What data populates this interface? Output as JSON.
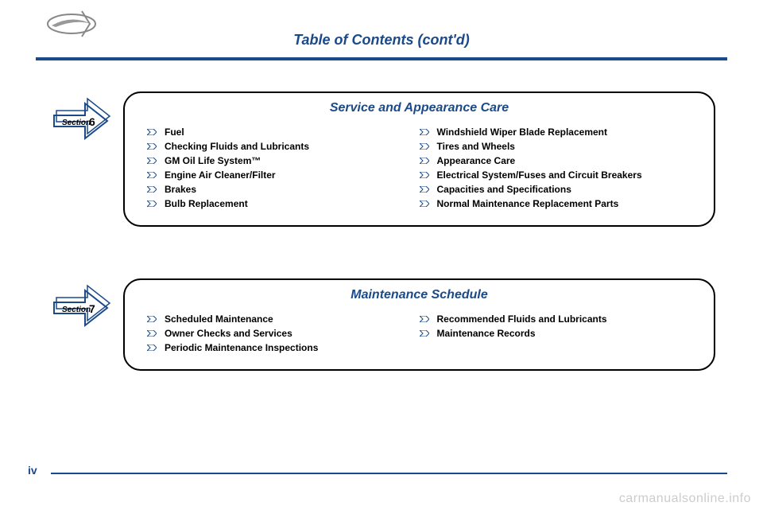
{
  "page_title": "Table of Contents (cont'd)",
  "page_number": "iv",
  "watermark": "carmanualsonline.info",
  "colors": {
    "primary": "#1a4a8a",
    "text": "#000000",
    "background": "#ffffff",
    "watermark": "#cccccc"
  },
  "sections": [
    {
      "section_label": "Section",
      "section_number": "6",
      "title": "Service and Appearance Care",
      "left_items": [
        "Fuel",
        "Checking Fluids and Lubricants",
        "GM Oil Life System™",
        "Engine Air Cleaner/Filter",
        "Brakes",
        "Bulb Replacement"
      ],
      "right_items": [
        "Windshield Wiper Blade Replacement",
        "Tires and Wheels",
        "Appearance Care",
        "Electrical System/Fuses and Circuit Breakers",
        "Capacities and Specifications",
        "Normal Maintenance Replacement Parts"
      ]
    },
    {
      "section_label": "Section",
      "section_number": "7",
      "title": "Maintenance Schedule",
      "left_items": [
        "Scheduled Maintenance",
        "Owner Checks and Services",
        "Periodic Maintenance Inspections"
      ],
      "right_items": [
        "Recommended Fluids and Lubricants",
        "Maintenance Records"
      ]
    }
  ]
}
